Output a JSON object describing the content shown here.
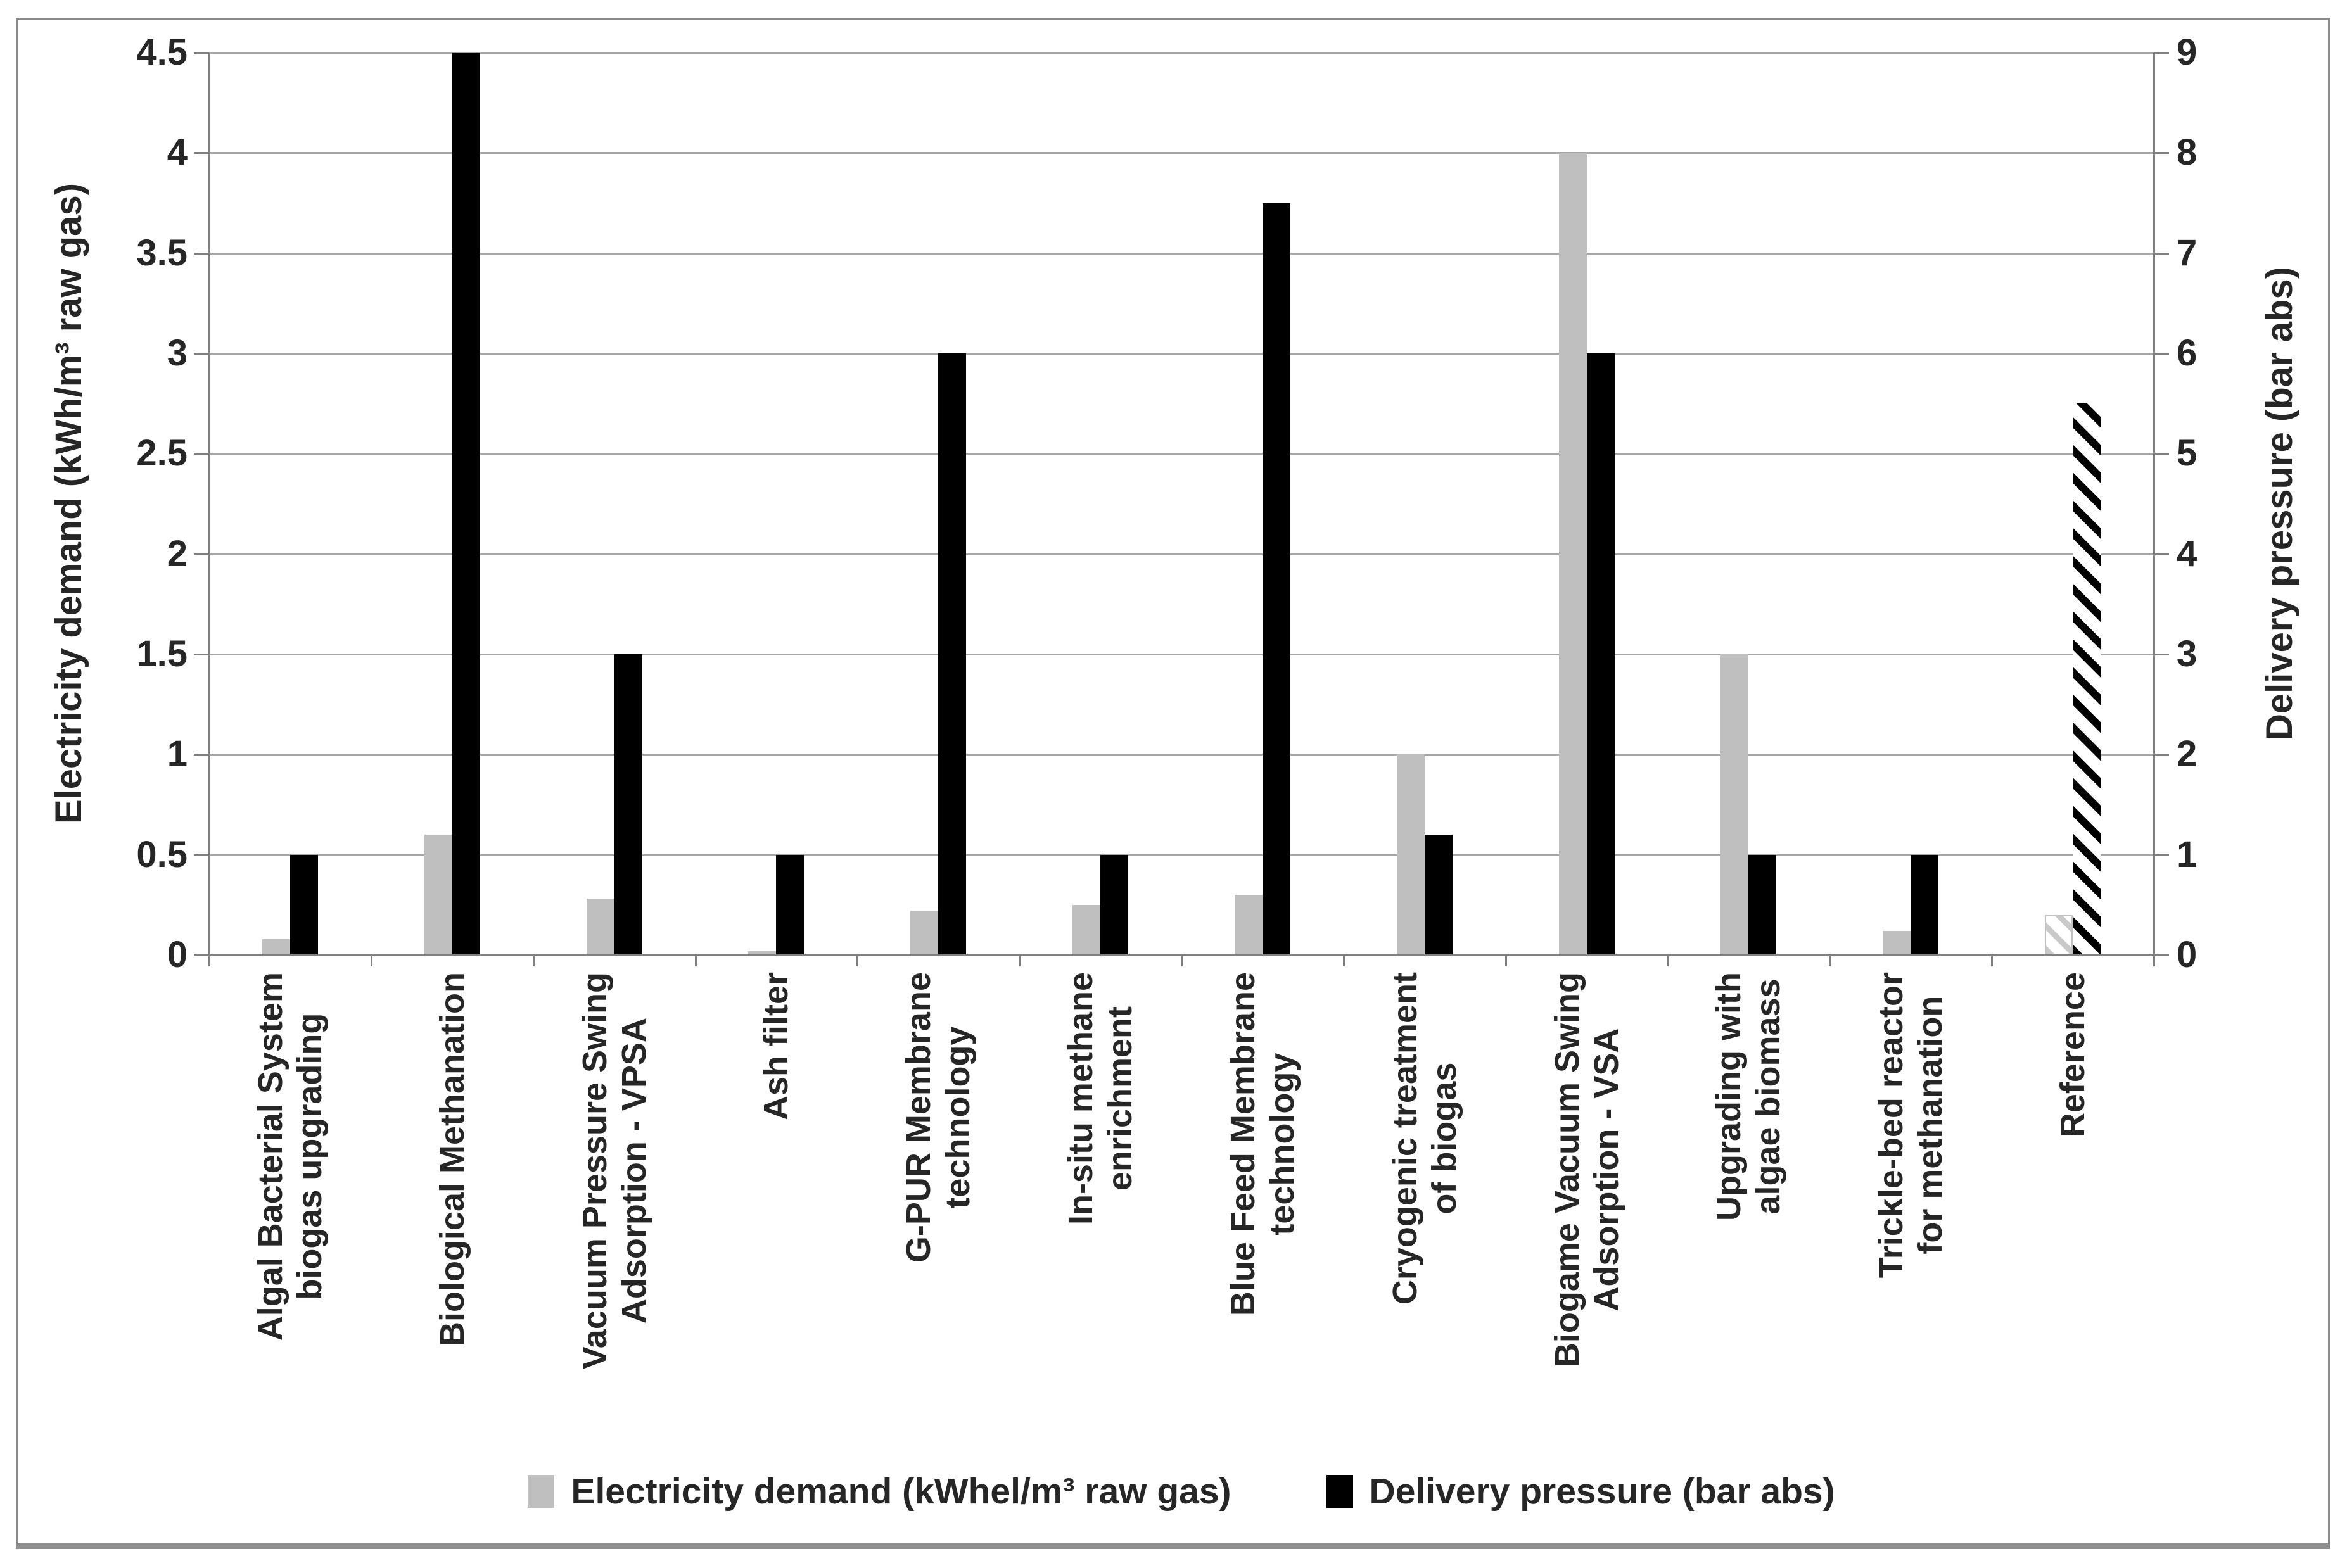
{
  "chart_data": {
    "type": "bar",
    "title": "",
    "categories": [
      "Algal Bacterial System biogas upgrading",
      "Biological Methanation",
      "Vacuum Pressure Swing Adsorption - VPSA",
      "Ash filter",
      "G-PUR Membrane technology",
      "In-situ methane enrichment",
      "Blue Feed Membrane technology",
      "Cryogenic treatment of biogas",
      "Biogame Vacuum Swing Adsorption - VSA",
      "Upgrading with algae biomass",
      "Trickle-bed reactor for methanation",
      "Reference"
    ],
    "category_label_lines": [
      [
        "Algal Bacterial System",
        "biogas upgrading"
      ],
      [
        "Biological Methanation"
      ],
      [
        "Vacuum Pressure Swing",
        "Adsorption - VPSA"
      ],
      [
        "Ash filter"
      ],
      [
        "G-PUR Membrane",
        "technology"
      ],
      [
        "In-situ methane",
        "enrichment"
      ],
      [
        "Blue Feed Membrane",
        "technology"
      ],
      [
        "Cryogenic treatment",
        "of biogas"
      ],
      [
        "Biogame Vacuum Swing",
        "Adsorption - VSA"
      ],
      [
        "Upgrading with",
        "algae biomass"
      ],
      [
        "Trickle-bed reactor",
        "for methanation"
      ],
      [
        "Reference"
      ]
    ],
    "series": [
      {
        "name": "Electricity demand (kWhel/m³ raw gas)",
        "axis": "left",
        "color": "#bfbfbf",
        "values": [
          0.08,
          0.6,
          0.28,
          0.02,
          0.22,
          0.25,
          0.3,
          1.0,
          4.0,
          1.5,
          0.12,
          0.2
        ]
      },
      {
        "name": "Delivery pressure (bar abs)",
        "axis": "right",
        "color": "#000000",
        "values": [
          1,
          9,
          3,
          1,
          6,
          1,
          7.5,
          1.2,
          6,
          1,
          1,
          5.5
        ]
      }
    ],
    "hatched_categories": [
      "Reference"
    ],
    "left_axis": {
      "label": "Electricity demand (kWh/m³ raw gas)",
      "min": 0,
      "max": 4.5,
      "tick_step": 0.5,
      "tick_labels": [
        "0",
        "0.5",
        "1",
        "1.5",
        "2",
        "2.5",
        "3",
        "3.5",
        "4",
        "4.5"
      ]
    },
    "right_axis": {
      "label": "Delivery pressure (bar abs)",
      "min": 0,
      "max": 9,
      "tick_step": 1,
      "tick_labels": [
        "0",
        "1",
        "2",
        "3",
        "4",
        "5",
        "6",
        "7",
        "8",
        "9"
      ]
    },
    "legend_position": "bottom",
    "grid": "horizontal",
    "colors": {
      "electricity_bar": "#bfbfbf",
      "pressure_bar": "#000000",
      "gridline": "#a6a6a6",
      "axis_line": "#808080",
      "text": "#262626",
      "frame_border": "#8a8a8a"
    },
    "legend": [
      {
        "swatch": "gray-square-icon",
        "label": "Electricity demand (kWhel/m³ raw gas)"
      },
      {
        "swatch": "black-square-icon",
        "label": "Delivery pressure (bar abs)"
      }
    ]
  }
}
